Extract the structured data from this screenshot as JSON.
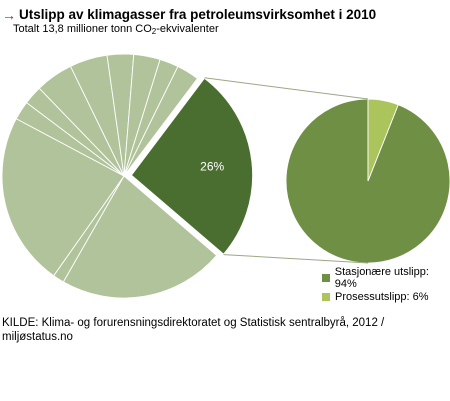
{
  "header": {
    "arrow_glyph": "→",
    "title": "Utslipp av klimagasser fra petroleumsvirksomhet i 2010",
    "subtitle_prefix": "Totalt 13,8 millioner tonn CO",
    "subtitle_sub": "2",
    "subtitle_suffix": "-ekvivalenter"
  },
  "source": "KILDE: Klima- og forurensningsdirektoratet og Statistisk sentralbyrå, 2012 / miljøstatus.no",
  "colors": {
    "arrow": "#c8102e",
    "main_gray": "#b1c39a",
    "main_highlight": "#4a6e30",
    "sub_large": "#6f8f45",
    "sub_small": "#abc45c",
    "connector": "#9aa886"
  },
  "chart_data": [
    {
      "type": "pie",
      "highlight_label": "26%",
      "slices": [
        {
          "value": 26,
          "highlighted": true
        },
        {
          "value": 22
        },
        {
          "value": 1.5
        },
        {
          "value": 23
        },
        {
          "value": 2.5
        },
        {
          "value": 2.5
        },
        {
          "value": 5
        },
        {
          "value": 5
        },
        {
          "value": 3.5
        },
        {
          "value": 3.5
        },
        {
          "value": 2.5
        },
        {
          "value": 3
        }
      ]
    },
    {
      "type": "pie",
      "slices": [
        {
          "label": "Stasjonære utslipp: 94%",
          "value": 94
        },
        {
          "label": "Prosessutslipp: 6%",
          "value": 6
        }
      ]
    }
  ]
}
